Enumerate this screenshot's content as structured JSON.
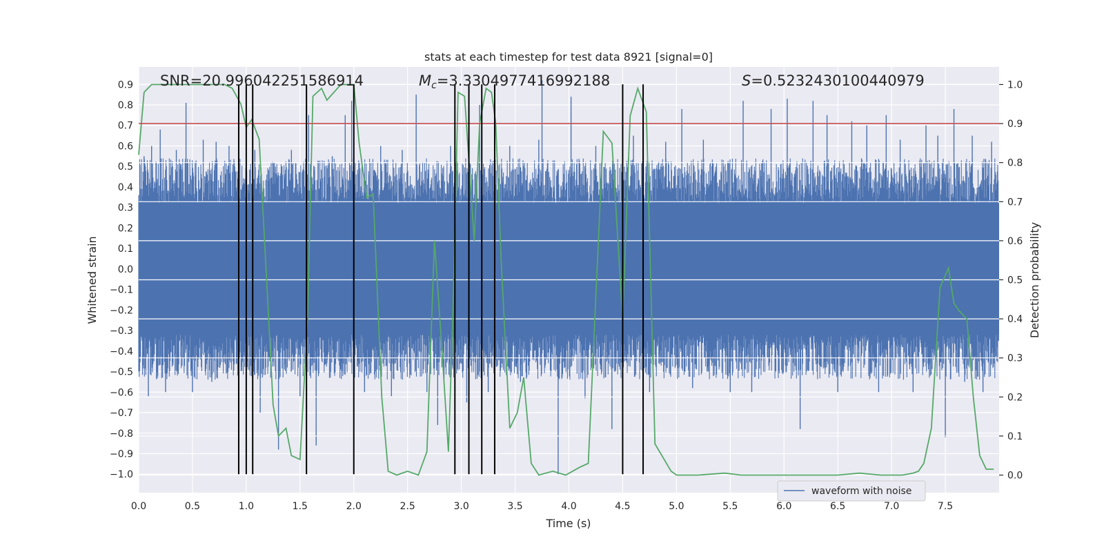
{
  "chart_data": {
    "type": "line",
    "title": "stats at each timestep for test data 8921 [signal=0]",
    "xlabel": "Time (s)",
    "ylabel": "Whitened strain",
    "ylabel_right": "Detection probability",
    "xlim": [
      0.0,
      8.0
    ],
    "ylim": [
      -1.09,
      0.985
    ],
    "ylim_right": [
      -0.045,
      1.045
    ],
    "x_ticks": [
      0.0,
      0.5,
      1.0,
      1.5,
      2.0,
      2.5,
      3.0,
      3.5,
      4.0,
      4.5,
      5.0,
      5.5,
      6.0,
      6.5,
      7.0,
      7.5
    ],
    "x_tick_labels": [
      "0.0",
      "0.5",
      "1.0",
      "1.5",
      "2.0",
      "2.5",
      "3.0",
      "3.5",
      "4.0",
      "4.5",
      "5.0",
      "5.5",
      "6.0",
      "6.5",
      "7.0",
      "7.5"
    ],
    "y_ticks": [
      -1.0,
      -0.9,
      -0.8,
      -0.7,
      -0.6,
      -0.5,
      -0.4,
      -0.3,
      -0.2,
      -0.1,
      0.0,
      0.1,
      0.2,
      0.3,
      0.4,
      0.5,
      0.6,
      0.7,
      0.8,
      0.9
    ],
    "y_tick_labels": [
      "−1.0",
      "−0.9",
      "−0.8",
      "−0.7",
      "−0.6",
      "−0.5",
      "−0.4",
      "−0.3",
      "−0.2",
      "−0.1",
      "0.0",
      "0.1",
      "0.2",
      "0.3",
      "0.4",
      "0.5",
      "0.6",
      "0.7",
      "0.8",
      "0.9"
    ],
    "y_right_ticks": [
      0.0,
      0.1,
      0.2,
      0.3,
      0.4,
      0.5,
      0.6,
      0.7,
      0.8,
      0.9,
      1.0
    ],
    "y_right_tick_labels": [
      "0.0",
      "0.1",
      "0.2",
      "0.3",
      "0.4",
      "0.5",
      "0.6",
      "0.7",
      "0.8",
      "0.9",
      "1.0"
    ],
    "annotations": {
      "snr": "SNR=20.996042251586914",
      "mc_symbol": "M",
      "mc_sub": "c",
      "mc_value": "=3.3304977416992188",
      "s_symbol": "S",
      "s_value": "=0.5232430100440979"
    },
    "threshold": {
      "value": 0.9,
      "axis": "right",
      "color": "#c44e52"
    },
    "detections": [
      0.93,
      1.0,
      1.06,
      1.56,
      2.0,
      2.94,
      3.07,
      3.19,
      3.31,
      4.5,
      4.69
    ],
    "waveform": {
      "name": "waveform with noise",
      "color": "#4c72b0",
      "core_envelope": 0.32,
      "spikes": [
        [
          0.05,
          0.55
        ],
        [
          0.09,
          -0.62
        ],
        [
          0.12,
          0.6
        ],
        [
          0.2,
          0.68
        ],
        [
          0.25,
          -0.6
        ],
        [
          0.35,
          0.58
        ],
        [
          0.44,
          0.81
        ],
        [
          0.5,
          -0.6
        ],
        [
          0.6,
          0.63
        ],
        [
          0.68,
          -0.55
        ],
        [
          0.72,
          0.62
        ],
        [
          0.84,
          0.6
        ],
        [
          0.93,
          -0.76
        ],
        [
          1.08,
          0.58
        ],
        [
          1.13,
          -0.7
        ],
        [
          1.3,
          -0.88
        ],
        [
          1.33,
          0.5
        ],
        [
          1.42,
          0.58
        ],
        [
          1.5,
          -0.62
        ],
        [
          1.58,
          0.75
        ],
        [
          1.65,
          -0.86
        ],
        [
          1.8,
          0.55
        ],
        [
          1.92,
          0.75
        ],
        [
          1.98,
          0.82
        ],
        [
          2.1,
          -0.6
        ],
        [
          2.25,
          0.6
        ],
        [
          2.35,
          -0.62
        ],
        [
          2.45,
          0.58
        ],
        [
          2.58,
          0.85
        ],
        [
          2.68,
          -0.6
        ],
        [
          2.78,
          -0.76
        ],
        [
          2.9,
          0.6
        ],
        [
          3.05,
          -0.65
        ],
        [
          3.17,
          0.8
        ],
        [
          3.25,
          -0.6
        ],
        [
          3.45,
          0.6
        ],
        [
          3.55,
          -0.55
        ],
        [
          3.72,
          0.63
        ],
        [
          3.75,
          0.92
        ],
        [
          3.9,
          -1.0
        ],
        [
          4.02,
          0.84
        ],
        [
          4.15,
          -0.63
        ],
        [
          4.25,
          0.6
        ],
        [
          4.4,
          -0.78
        ],
        [
          4.6,
          0.65
        ],
        [
          4.75,
          -0.6
        ],
        [
          4.9,
          0.62
        ],
        [
          5.05,
          0.78
        ],
        [
          5.15,
          -0.58
        ],
        [
          5.25,
          0.63
        ],
        [
          5.5,
          -0.6
        ],
        [
          5.62,
          0.82
        ],
        [
          5.7,
          -0.6
        ],
        [
          5.88,
          0.78
        ],
        [
          6.03,
          0.83
        ],
        [
          6.15,
          -0.78
        ],
        [
          6.27,
          0.82
        ],
        [
          6.4,
          0.75
        ],
        [
          6.5,
          -0.6
        ],
        [
          6.63,
          0.72
        ],
        [
          6.77,
          0.7
        ],
        [
          6.88,
          -0.6
        ],
        [
          6.95,
          0.75
        ],
        [
          7.08,
          0.63
        ],
        [
          7.2,
          -0.6
        ],
        [
          7.32,
          0.7
        ],
        [
          7.43,
          0.65
        ],
        [
          7.5,
          -0.82
        ],
        [
          7.58,
          0.78
        ],
        [
          7.68,
          -0.55
        ],
        [
          7.75,
          0.65
        ],
        [
          7.85,
          -0.6
        ],
        [
          7.93,
          0.62
        ]
      ]
    },
    "probability": {
      "color": "#55a868",
      "axis": "right",
      "x": [
        0.0,
        0.05,
        0.12,
        0.2,
        0.3,
        0.4,
        0.5,
        0.6,
        0.7,
        0.8,
        0.87,
        0.95,
        1.0,
        1.05,
        1.12,
        1.18,
        1.25,
        1.3,
        1.37,
        1.42,
        1.5,
        1.57,
        1.62,
        1.7,
        1.75,
        1.88,
        2.0,
        2.05,
        2.12,
        2.18,
        2.26,
        2.32,
        2.4,
        2.5,
        2.6,
        2.68,
        2.75,
        2.82,
        2.88,
        2.92,
        2.97,
        3.03,
        3.12,
        3.17,
        3.23,
        3.28,
        3.32,
        3.37,
        3.45,
        3.52,
        3.58,
        3.65,
        3.72,
        3.85,
        3.97,
        4.1,
        4.18,
        4.32,
        4.4,
        4.5,
        4.57,
        4.64,
        4.72,
        4.8,
        4.95,
        5.0,
        5.2,
        5.45,
        5.6,
        6.0,
        6.5,
        6.7,
        6.9,
        7.1,
        7.2,
        7.25,
        7.3,
        7.37,
        7.45,
        7.53,
        7.58,
        7.63,
        7.7,
        7.76,
        7.82,
        7.88,
        7.95
      ],
      "y": [
        0.82,
        0.98,
        1.0,
        1.0,
        1.0,
        1.0,
        1.0,
        1.0,
        1.0,
        1.0,
        0.99,
        0.95,
        0.89,
        0.91,
        0.86,
        0.55,
        0.18,
        0.1,
        0.12,
        0.05,
        0.04,
        0.4,
        0.97,
        0.99,
        0.96,
        1.0,
        1.0,
        0.85,
        0.71,
        0.72,
        0.2,
        0.01,
        0.0,
        0.01,
        0.0,
        0.06,
        0.6,
        0.32,
        0.06,
        0.4,
        0.98,
        0.97,
        0.6,
        0.9,
        0.99,
        0.98,
        0.9,
        0.55,
        0.12,
        0.16,
        0.25,
        0.03,
        0.0,
        0.01,
        0.0,
        0.02,
        0.03,
        0.88,
        0.85,
        0.4,
        0.92,
        0.99,
        0.93,
        0.08,
        0.01,
        0.0,
        0.0,
        0.005,
        0.0,
        0.0,
        0.0,
        0.005,
        0.0,
        0.0,
        0.005,
        0.01,
        0.03,
        0.12,
        0.48,
        0.53,
        0.44,
        0.42,
        0.4,
        0.2,
        0.05,
        0.015,
        0.015
      ]
    },
    "legend": {
      "label": "waveform with noise",
      "position": "lower-right"
    }
  }
}
